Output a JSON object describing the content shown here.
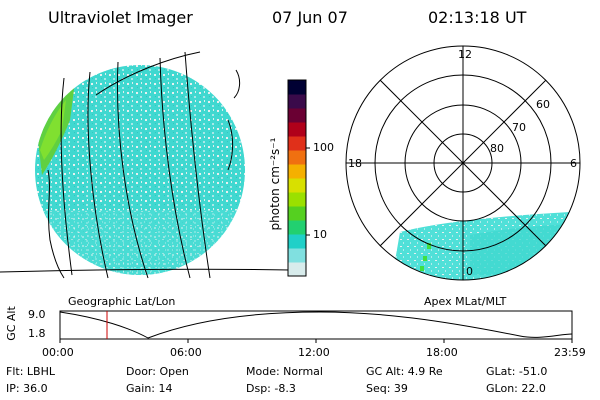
{
  "header": {
    "instrument": "Ultraviolet Imager",
    "date": "07 Jun 07",
    "time": "02:13:18 UT"
  },
  "colorbar": {
    "unit_label": "photon cm⁻²s⁻¹",
    "ticks": [
      "100",
      "10"
    ],
    "colors": [
      "#000033",
      "#3a0a4a",
      "#6a0033",
      "#b0001a",
      "#e0301a",
      "#f07010",
      "#f5b000",
      "#d8e000",
      "#9be000",
      "#55d020",
      "#22d070",
      "#20d0c8",
      "#80e0e0",
      "#d8ecec"
    ]
  },
  "geo_panel": {
    "label": "Geographic Lat/Lon",
    "disk_color": "#40d8d0"
  },
  "apex_panel": {
    "label": "Apex  MLat/MLT",
    "mlt_labels": {
      "top": "12",
      "left": "18",
      "right": "6",
      "bottom": "0"
    },
    "mlat_labels": [
      "60",
      "70",
      "80"
    ]
  },
  "altitude_plot": {
    "ylabel": "GC Alt",
    "y_ticks": [
      "9.0",
      "1.8"
    ],
    "x_ticks": [
      "00:00",
      "06:00",
      "12:00",
      "18:00",
      "23:59"
    ],
    "current_marker_color": "#cc0000"
  },
  "info": {
    "flt": "Flt: LBHL",
    "ip": "IP: 36.0",
    "door": "Door: Open",
    "gain": "Gain: 14",
    "mode": "Mode: Normal",
    "dsp": "Dsp:   -8.3",
    "gcalt": "GC Alt: 4.9 Re",
    "seq": "Seq: 39",
    "glat": "GLat:  -51.0",
    "glon": "GLon:  22.0"
  }
}
